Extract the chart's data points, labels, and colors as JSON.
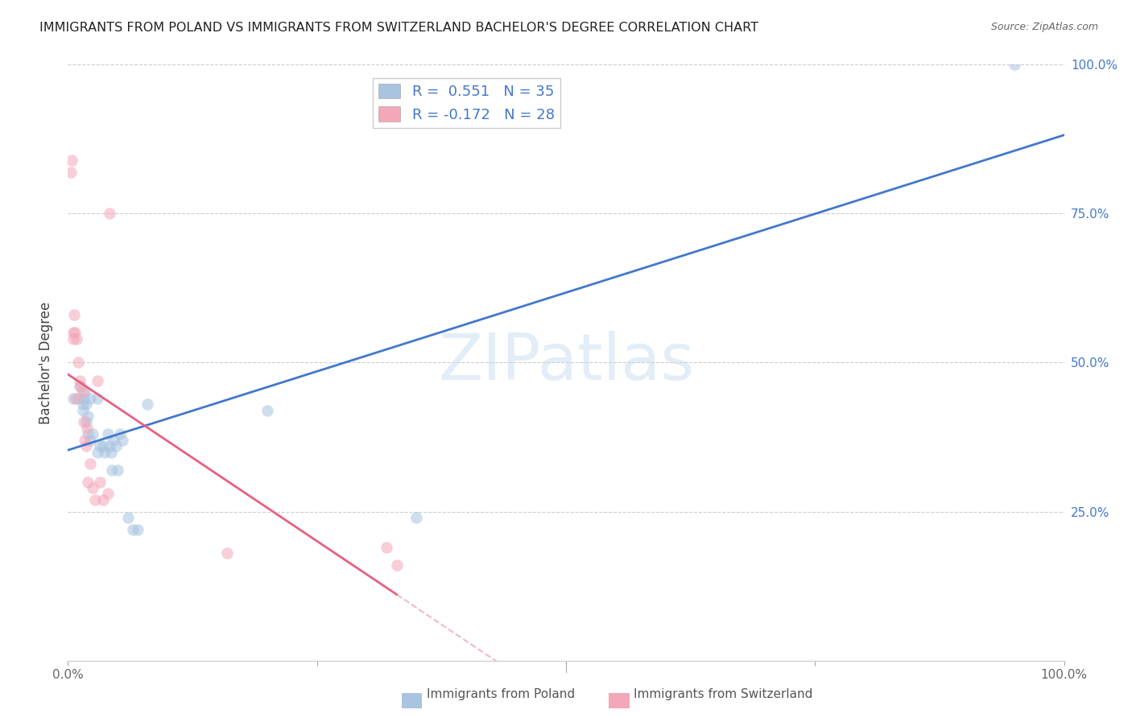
{
  "title": "IMMIGRANTS FROM POLAND VS IMMIGRANTS FROM SWITZERLAND BACHELOR'S DEGREE CORRELATION CHART",
  "source_text": "Source: ZipAtlas.com",
  "ylabel": "Bachelor's Degree",
  "r_poland": 0.551,
  "n_poland": 35,
  "r_switzerland": -0.172,
  "n_switzerland": 28,
  "watermark_zip": "ZIP",
  "watermark_atlas": "atlas",
  "poland_color": "#a8c4e0",
  "switzerland_color": "#f4a7b9",
  "poland_line_color": "#4477cc",
  "switzerland_line_color": "#e86080",
  "title_color": "#222222",
  "grid_color": "#cccccc",
  "ytick_color": "#4477cc",
  "ytick_vals": [
    1.0,
    0.75,
    0.5,
    0.25,
    0.0
  ],
  "poland_x": [
    0.5,
    1.0,
    1.2,
    1.5,
    1.5,
    1.6,
    1.7,
    1.8,
    1.8,
    2.0,
    2.0,
    2.2,
    2.2,
    2.5,
    3.0,
    3.0,
    3.2,
    3.5,
    3.7,
    4.0,
    4.2,
    4.3,
    4.4,
    4.6,
    4.8,
    5.0,
    5.2,
    5.5,
    6.0,
    6.5,
    7.0,
    8.0,
    20.0,
    35.0,
    95.0
  ],
  "poland_y": [
    0.44,
    0.44,
    0.46,
    0.42,
    0.43,
    0.44,
    0.45,
    0.4,
    0.43,
    0.38,
    0.41,
    0.37,
    0.44,
    0.38,
    0.35,
    0.44,
    0.36,
    0.36,
    0.35,
    0.38,
    0.36,
    0.35,
    0.32,
    0.37,
    0.36,
    0.32,
    0.38,
    0.37,
    0.24,
    0.22,
    0.22,
    0.43,
    0.42,
    0.24,
    1.0
  ],
  "switzerland_x": [
    0.3,
    0.4,
    0.5,
    0.5,
    0.6,
    0.7,
    0.8,
    0.9,
    1.0,
    1.2,
    1.3,
    1.5,
    1.6,
    1.7,
    1.8,
    1.9,
    2.0,
    2.2,
    2.5,
    2.7,
    3.0,
    3.2,
    3.5,
    4.0,
    4.2,
    16.0,
    32.0,
    33.0
  ],
  "switzerland_y": [
    0.82,
    0.84,
    0.54,
    0.55,
    0.58,
    0.55,
    0.44,
    0.54,
    0.5,
    0.47,
    0.46,
    0.45,
    0.4,
    0.37,
    0.36,
    0.39,
    0.3,
    0.33,
    0.29,
    0.27,
    0.47,
    0.3,
    0.27,
    0.28,
    0.75,
    0.18,
    0.19,
    0.16
  ],
  "xlim": [
    0.0,
    100.0
  ],
  "ylim": [
    0.0,
    1.0
  ],
  "figsize": [
    14.06,
    8.92
  ],
  "dpi": 100,
  "scatter_size": 110,
  "scatter_alpha": 0.55
}
